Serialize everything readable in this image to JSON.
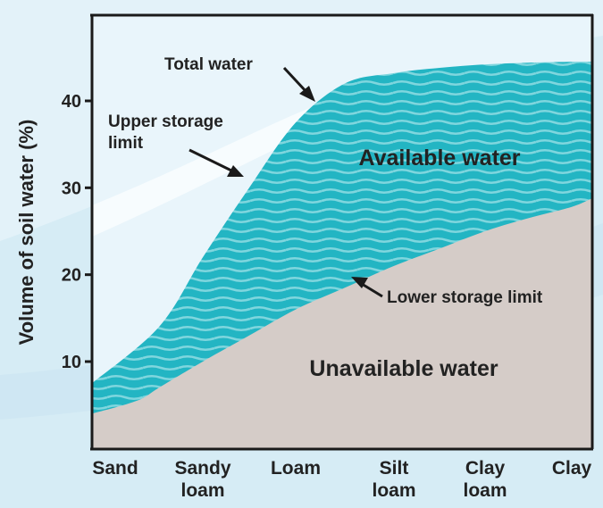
{
  "chart_data": {
    "type": "area",
    "title": "",
    "ylabel": "Volume of soil water (%)",
    "xlabel": "",
    "ylim": [
      0,
      48
    ],
    "yticks": [
      10,
      20,
      30,
      40
    ],
    "categories": [
      {
        "line1": "Sand",
        "line2": ""
      },
      {
        "line1": "Sandy",
        "line2": "loam"
      },
      {
        "line1": "Loam",
        "line2": ""
      },
      {
        "line1": "Silt",
        "line2": "loam"
      },
      {
        "line1": "Clay",
        "line2": "loam"
      },
      {
        "line1": "Clay",
        "line2": ""
      }
    ],
    "series": [
      {
        "name": "Upper storage limit",
        "x": [
          0,
          0.5,
          1,
          1.5,
          2,
          2.5,
          3,
          3.5,
          4,
          4.5,
          5,
          5.5
        ],
        "values": [
          7.5,
          14,
          22,
          30,
          37.5,
          42,
          43.2,
          43.8,
          44.2,
          44.4,
          44.5,
          44.5
        ]
      },
      {
        "name": "Lower storage limit",
        "x": [
          0,
          0.25,
          0.5,
          1,
          1.5,
          2,
          2.5,
          3,
          3.5,
          4,
          4.5,
          5,
          5.5
        ],
        "values": [
          4,
          5.5,
          7,
          10,
          13,
          16,
          18.5,
          21,
          23,
          25,
          26.5,
          27.8,
          28.8
        ]
      }
    ],
    "annotations": {
      "total_water": "Total water",
      "upper_limit_line1": "Upper storage",
      "upper_limit_line2": "limit",
      "available": "Available water",
      "lower_limit": "Lower storage limit",
      "unavailable": "Unavailable water"
    },
    "colors": {
      "available": "#23b5c3",
      "wave": "#7fd6de",
      "unavailable": "#d5ccc8",
      "axis": "#1a1a1a",
      "background": "#d6ecf5"
    }
  }
}
